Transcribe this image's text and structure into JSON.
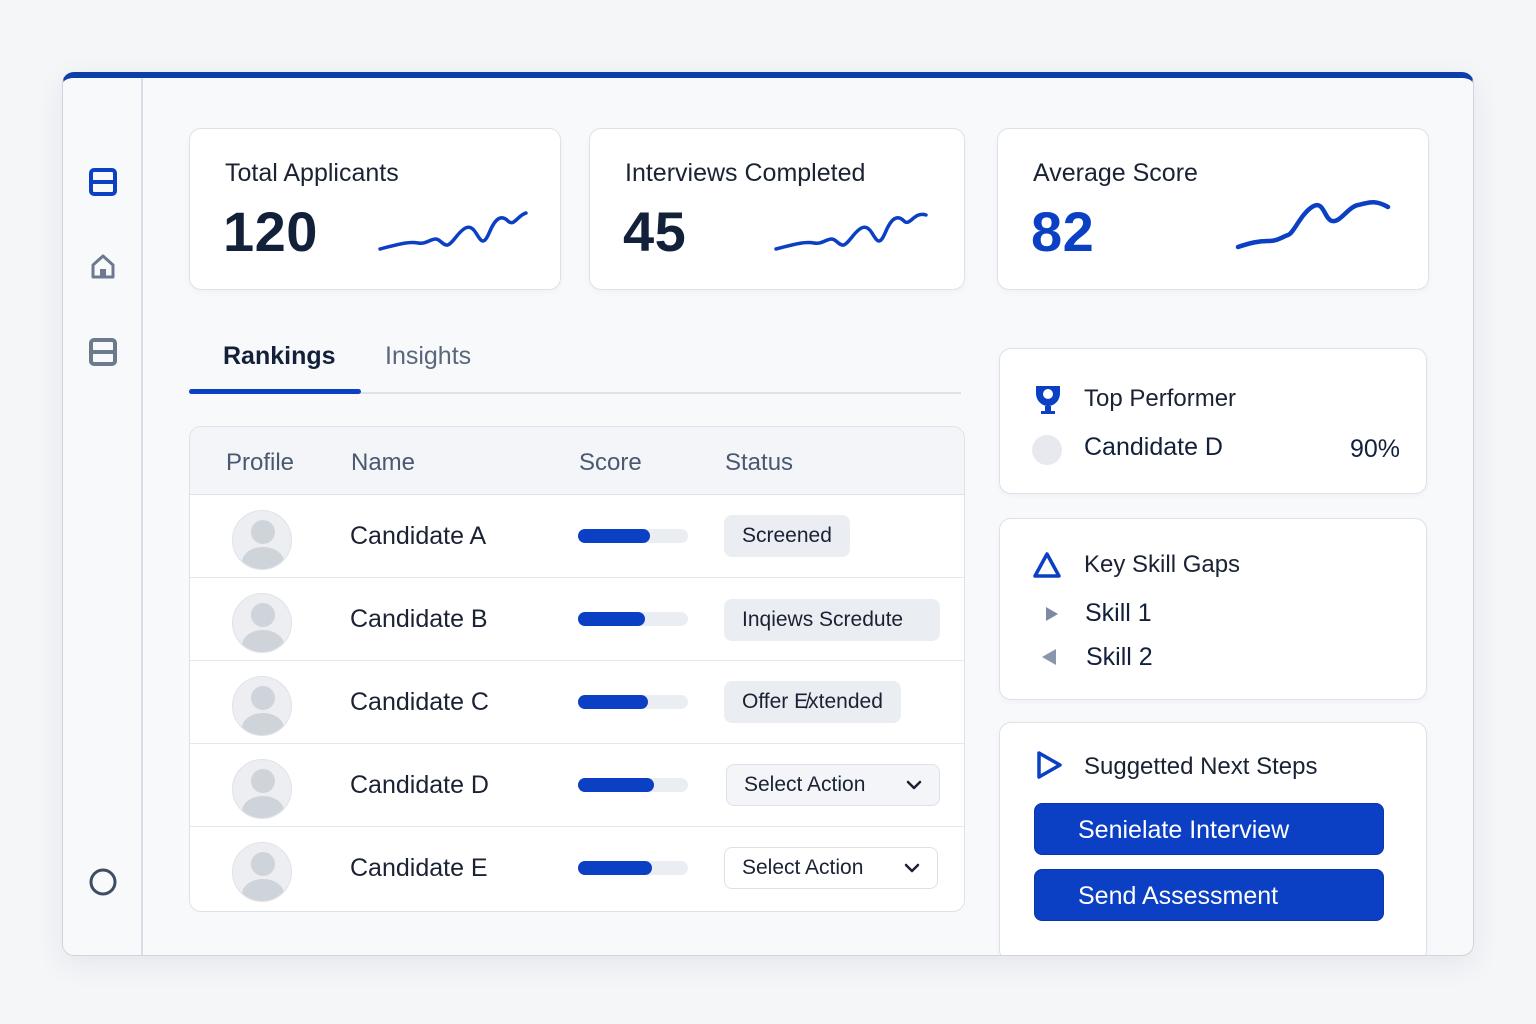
{
  "colors": {
    "accent": "#0b3fc4",
    "border": "#dde2ea",
    "text": "#1a2233",
    "muted": "#58677d"
  },
  "sidebar": {
    "items": [
      {
        "icon": "list-icon",
        "active": true
      },
      {
        "icon": "home-icon",
        "active": false
      },
      {
        "icon": "list-icon",
        "active": false
      }
    ],
    "bottom_icon": "circle-icon"
  },
  "stats": [
    {
      "label": "Total Applicants",
      "value": "120"
    },
    {
      "label": "Interviews Completed",
      "value": "45"
    },
    {
      "label": "Average Score",
      "value": "82"
    }
  ],
  "tabs": [
    {
      "label": "Rankings",
      "active": true
    },
    {
      "label": "Insights",
      "active": false
    }
  ],
  "table": {
    "headers": [
      "Profile",
      "Name",
      "Score",
      "Status"
    ],
    "rows": [
      {
        "name": "Candidate A",
        "score_fraction": 0.65,
        "status": "Screened",
        "status_type": "pill"
      },
      {
        "name": "Candidate B",
        "score_fraction": 0.61,
        "status": "Inqiews Scredute",
        "status_type": "pill"
      },
      {
        "name": "Candidate C",
        "score_fraction": 0.64,
        "status": "Offer E̸xtended",
        "status_type": "pill"
      },
      {
        "name": "Candidate D",
        "score_fraction": 0.69,
        "status": "Select Action",
        "status_type": "select"
      },
      {
        "name": "Candidate E",
        "score_fraction": 0.67,
        "status": "Select Action",
        "status_type": "select"
      }
    ]
  },
  "top_performer": {
    "title": "Top Performer",
    "icon": "trophy-icon",
    "name": "Candidate D",
    "score": "90%"
  },
  "skill_gaps": {
    "title": "Key Skill Gaps",
    "icon": "warning-triangle-icon",
    "items": [
      "Skill 1",
      "Skill 2"
    ]
  },
  "next_steps": {
    "title": "Suggetted Next Steps",
    "icon": "play-icon",
    "buttons": [
      "Senielate Interview",
      "Send Assessment"
    ]
  }
}
